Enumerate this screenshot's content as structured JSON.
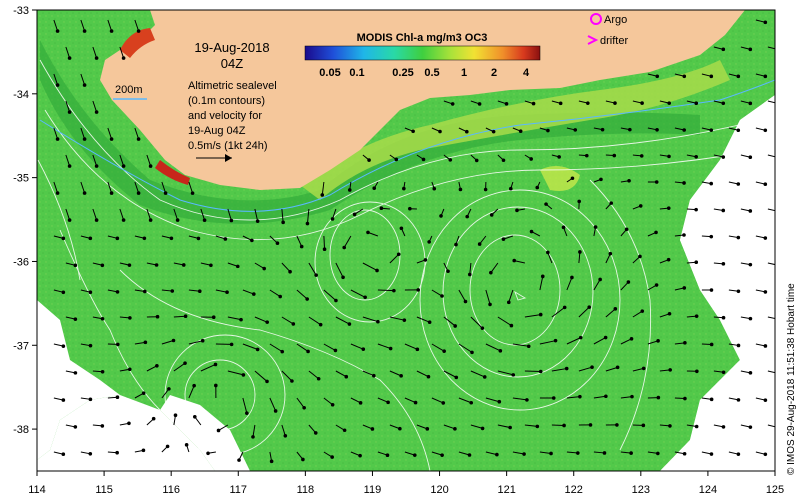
{
  "map": {
    "date_line1": "19-Aug-2018",
    "date_line2": "04Z",
    "info_lines": [
      "Altimetric sealevel",
      "(0.1m contours)",
      "and velocity for",
      "19-Aug 04Z",
      "0.5m/s (1kt 24h)"
    ],
    "isobath_label": "200m",
    "colorbar_title": "MODIS Chl-a mg/m3 OC3",
    "colorbar_ticks": [
      "0.05",
      "0.1",
      "0.25",
      "0.5",
      "1",
      "2",
      "4"
    ],
    "legend": {
      "argo": "Argo",
      "drifter": "drifter"
    },
    "credit": "© IMOS 29-Aug-2018 11:51:38 Hobart time",
    "x_ticks": [
      "114",
      "115",
      "116",
      "117",
      "118",
      "119",
      "120",
      "121",
      "122",
      "123",
      "124",
      "125"
    ],
    "y_ticks": [
      "-33",
      "-34",
      "-35",
      "-36",
      "-37",
      "-38"
    ],
    "lon_range": [
      114,
      125
    ],
    "lat_range": [
      -38.5,
      -33
    ],
    "colors": {
      "land": "#f5c79b",
      "ocean": "#52c94a",
      "cloud": "#ffffff",
      "legend_marker": "#ff00ff"
    }
  }
}
